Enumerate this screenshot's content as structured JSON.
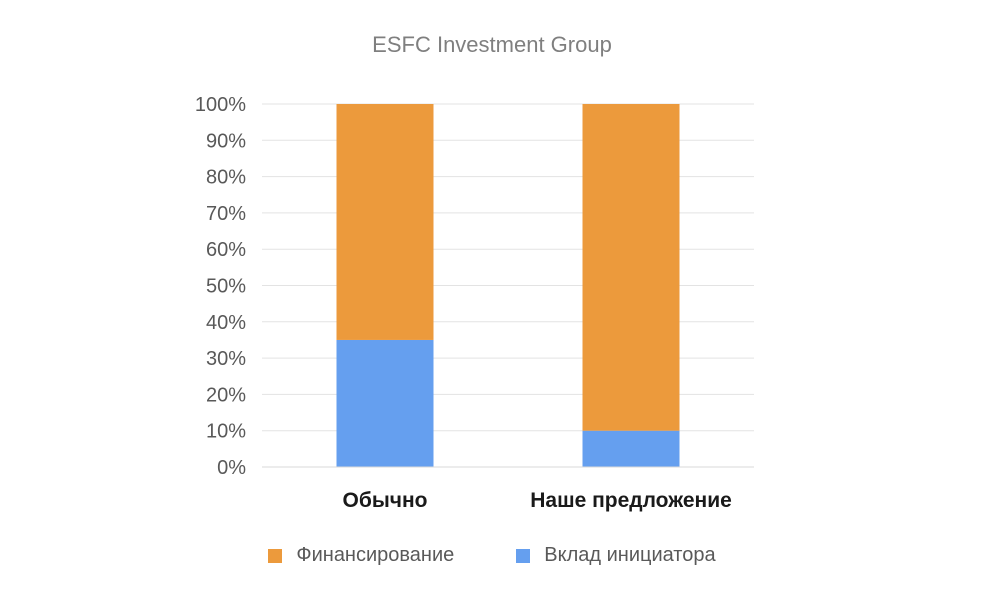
{
  "chart_data": {
    "type": "bar",
    "stacked": true,
    "title": "ESFC Investment Group",
    "categories": [
      "Обычно",
      "Наше предложение"
    ],
    "series": [
      {
        "name": "Вклад инициатора",
        "color": "#659fef",
        "values": [
          35,
          10
        ]
      },
      {
        "name": "Финансирование",
        "color": "#ec9a3c",
        "values": [
          65,
          90
        ]
      }
    ],
    "ylim": [
      0,
      100
    ],
    "yticks": [
      "0%",
      "10%",
      "20%",
      "30%",
      "40%",
      "50%",
      "60%",
      "70%",
      "80%",
      "90%",
      "100%"
    ],
    "ylabel": "",
    "xlabel": "",
    "grid": true,
    "legend_position": "bottom",
    "legend_order": [
      "Финансирование",
      "Вклад инициатора"
    ]
  }
}
